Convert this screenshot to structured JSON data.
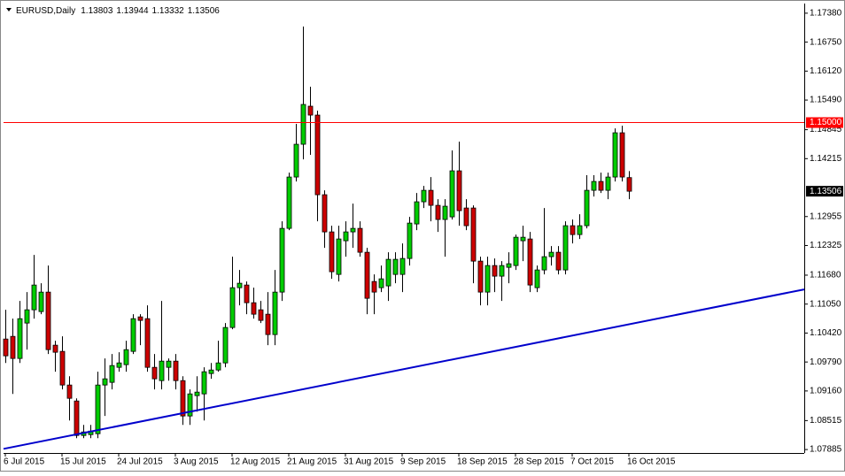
{
  "chart_data": {
    "type": "candlestick",
    "symbol": "EURUSD,Daily",
    "header_values": [
      1.13803,
      1.13944,
      1.13332,
      1.13506
    ],
    "categories": [
      "6 Jul 2015",
      null,
      null,
      null,
      null,
      null,
      null,
      null,
      "15 Jul 2015",
      null,
      null,
      null,
      null,
      null,
      null,
      null,
      "24 Jul 2015",
      null,
      null,
      null,
      null,
      null,
      null,
      null,
      "3 Aug 2015",
      null,
      null,
      null,
      null,
      null,
      null,
      null,
      "12 Aug 2015",
      null,
      null,
      null,
      null,
      null,
      null,
      null,
      "21 Aug 2015",
      null,
      null,
      null,
      null,
      null,
      null,
      null,
      "31 Aug 2015",
      null,
      null,
      null,
      null,
      null,
      null,
      null,
      "9 Sep 2015",
      null,
      null,
      null,
      null,
      null,
      null,
      null,
      "18 Sep 2015",
      null,
      null,
      null,
      null,
      null,
      null,
      null,
      "28 Sep 2015",
      null,
      null,
      null,
      null,
      null,
      null,
      null,
      "7 Oct 2015",
      null,
      null,
      null,
      null,
      null,
      null,
      null,
      "16 Oct 2015"
    ],
    "open": [
      1.1029,
      1.10348,
      1.09867,
      1.10637,
      1.10926,
      1.10887,
      1.11311,
      1.10156,
      1.10021,
      1.09289,
      1.08942,
      1.08191,
      1.0821,
      1.0823,
      1.09289,
      1.09347,
      1.09674,
      1.09732,
      1.10021,
      1.10772,
      1.10733,
      1.09674,
      1.09385,
      1.09674,
      1.09809,
      1.09385,
      1.08615,
      1.09058,
      1.09096,
      1.09539,
      1.09616,
      1.0977,
      1.10541,
      1.11407,
      1.11465,
      1.1108,
      1.10926,
      1.1083,
      1.10387,
      1.11311,
      1.12698,
      1.13815,
      1.14528,
      1.15356,
      1.15163,
      1.1343,
      1.12621,
      1.11696,
      1.12428,
      1.12621,
      1.12698,
      1.12178,
      1.11542,
      1.11407,
      1.11446,
      1.11696,
      1.11696,
      1.12043,
      1.12794,
      1.13276,
      1.13526,
      1.13199,
      1.12891,
      1.12948,
      1.1395,
      1.13141,
      1.13141,
      1.11985,
      1.11311,
      1.11889,
      1.11658,
      1.1185,
      1.11889,
      1.12428,
      1.12467,
      1.11407,
      1.11793,
      1.12082,
      1.12178,
      1.11793,
      1.12756,
      1.12563,
      1.12756,
      1.13526,
      1.13719,
      1.13526,
      1.13815,
      1.14778,
      1.13803
    ],
    "high": [
      1.10926,
      1.10733,
      1.11119,
      1.11311,
      1.1212,
      1.11504,
      1.11889,
      1.10252,
      1.10348,
      1.09481,
      1.09,
      1.08422,
      1.08422,
      1.09578,
      1.09867,
      1.09963,
      1.10002,
      1.10252,
      1.1083,
      1.1083,
      1.11022,
      1.09963,
      1.11119,
      1.09867,
      1.09963,
      1.09481,
      1.09193,
      1.09481,
      1.09674,
      1.0977,
      1.10252,
      1.10637,
      1.12082,
      1.11793,
      1.11542,
      1.11407,
      1.11119,
      1.11311,
      1.11793,
      1.12852,
      1.13911,
      1.14971,
      1.17089,
      1.1578,
      1.15259,
      1.13526,
      1.12756,
      1.12756,
      1.12852,
      1.13237,
      1.12852,
      1.12274,
      1.11696,
      1.11889,
      1.12178,
      1.12178,
      1.1237,
      1.12948,
      1.13468,
      1.13622,
      1.13815,
      1.13333,
      1.13333,
      1.14393,
      1.14585,
      1.13333,
      1.13199,
      1.12082,
      1.12082,
      1.12043,
      1.11985,
      1.12178,
      1.12563,
      1.12756,
      1.12621,
      1.11889,
      1.13141,
      1.12313,
      1.12313,
      1.12852,
      1.12891,
      1.13006,
      1.13854,
      1.13854,
      1.13911,
      1.13911,
      1.14874,
      1.14932,
      1.13944
    ],
    "low": [
      1.0977,
      1.09096,
      1.0977,
      1.10059,
      1.10733,
      1.1083,
      1.09963,
      1.09578,
      1.09193,
      1.08518,
      1.08133,
      1.08133,
      1.08133,
      1.08133,
      1.08615,
      1.09193,
      1.09578,
      1.09578,
      1.09963,
      1.10156,
      1.09578,
      1.09193,
      1.09193,
      1.09385,
      1.09193,
      1.08422,
      1.08422,
      1.08711,
      1.08518,
      1.09424,
      1.09578,
      1.09674,
      1.10502,
      1.11022,
      1.1083,
      1.10733,
      1.10637,
      1.10156,
      1.10156,
      1.11119,
      1.12659,
      1.13719,
      1.142,
      1.14297,
      1.12852,
      1.12274,
      1.116,
      1.11542,
      1.12082,
      1.12274,
      1.12082,
      1.1083,
      1.1083,
      1.11311,
      1.11119,
      1.11504,
      1.11311,
      1.11889,
      1.12659,
      1.13141,
      1.12852,
      1.12621,
      1.12082,
      1.12891,
      1.12756,
      1.12659,
      1.11504,
      1.11022,
      1.11022,
      1.11311,
      1.11119,
      1.11504,
      1.11793,
      1.11985,
      1.11311,
      1.11311,
      1.11696,
      1.11889,
      1.11696,
      1.11696,
      1.1237,
      1.12467,
      1.12698,
      1.13391,
      1.13468,
      1.13333,
      1.13719,
      1.13719,
      1.13332
    ],
    "close": [
      1.09924,
      1.09867,
      1.10733,
      1.10926,
      1.11465,
      1.11311,
      1.10059,
      1.10002,
      1.09289,
      1.09,
      1.08191,
      1.08268,
      1.08287,
      1.09289,
      1.09424,
      1.09713,
      1.0977,
      1.10059,
      1.10733,
      1.10695,
      1.09674,
      1.09424,
      1.09809,
      1.09809,
      1.09385,
      1.08615,
      1.09096,
      1.09135,
      1.09578,
      1.09616,
      1.0977,
      1.10541,
      1.11407,
      1.11504,
      1.1108,
      1.1083,
      1.10695,
      1.10387,
      1.11311,
      1.12698,
      1.13815,
      1.14528,
      1.15394,
      1.15163,
      1.1343,
      1.12621,
      1.11754,
      1.12467,
      1.12621,
      1.12698,
      1.12178,
      1.11176,
      1.11311,
      1.116,
      1.12024,
      1.12024,
      1.12043,
      1.12813,
      1.13276,
      1.13526,
      1.13199,
      1.12891,
      1.1318,
      1.1395,
      1.13083,
      1.12756,
      1.11985,
      1.11311,
      1.11889,
      1.11658,
      1.11889,
      1.11928,
      1.12505,
      1.12505,
      1.11465,
      1.11793,
      1.12082,
      1.12178,
      1.11793,
      1.12756,
      1.12563,
      1.12756,
      1.13526,
      1.13719,
      1.13526,
      1.13815,
      1.14778,
      1.13815,
      1.13506
    ],
    "up_color": "#00cc00",
    "down_color": "#cc0000",
    "ylim": [
      1.0781,
      1.1759
    ],
    "yticks": [
      {
        "value": 1.1738,
        "label": "1.17380"
      },
      {
        "value": 1.1675,
        "label": "1.16750"
      },
      {
        "value": 1.1612,
        "label": "1.16120"
      },
      {
        "value": 1.1549,
        "label": "1.15490"
      },
      1.14845,
      1.14215,
      1.12955,
      1.12325,
      {
        "value": 1.1168,
        "label": "1.11680"
      },
      {
        "value": 1.1105,
        "label": "1.11050"
      },
      {
        "value": 1.1042,
        "label": "1.10420"
      },
      {
        "value": 1.0979,
        "label": "1.09790"
      },
      {
        "value": 1.0916,
        "label": "1.09160"
      },
      1.08515,
      1.07885
    ],
    "hline": {
      "value": 1.15,
      "label": "1.15000",
      "color": "#ff0000"
    },
    "trendline": {
      "values": [
        1.079,
        1.1137
      ],
      "color": "#0000cc"
    }
  }
}
